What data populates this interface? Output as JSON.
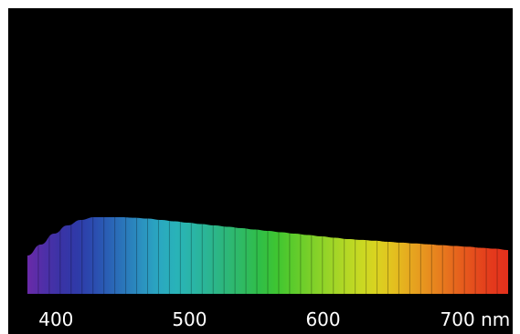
{
  "chart_data": {
    "type": "area",
    "title": "",
    "xlabel": "",
    "ylabel": "",
    "x_tick_labels": [
      "400",
      "500",
      "600",
      "700 nm"
    ],
    "x_tick_values": [
      400,
      500,
      600,
      700
    ],
    "xlim": [
      380,
      740
    ],
    "ylim": [
      0,
      1
    ],
    "grid": false,
    "x": [
      380,
      390,
      400,
      410,
      420,
      430,
      440,
      450,
      460,
      470,
      480,
      490,
      500,
      510,
      520,
      530,
      540,
      550,
      560,
      570,
      580,
      590,
      600,
      610,
      620,
      630,
      640,
      650,
      660,
      670,
      680,
      690,
      700,
      710,
      720,
      730,
      740
    ],
    "values": [
      0.14,
      0.18,
      0.22,
      0.25,
      0.27,
      0.28,
      0.28,
      0.28,
      0.278,
      0.275,
      0.27,
      0.265,
      0.26,
      0.255,
      0.25,
      0.245,
      0.24,
      0.235,
      0.23,
      0.225,
      0.22,
      0.215,
      0.21,
      0.205,
      0.2,
      0.197,
      0.194,
      0.19,
      0.187,
      0.184,
      0.181,
      0.178,
      0.175,
      0.172,
      0.168,
      0.165,
      0.16
    ],
    "colors": {
      "background": "#000000",
      "tick_text": "#ffffff",
      "spectrum": [
        "#6a2aa8",
        "#4f2fa8",
        "#3a33a6",
        "#2f3aa8",
        "#2b4cb0",
        "#2a63b6",
        "#2a7bbb",
        "#2b94c0",
        "#2aa8c0",
        "#29b3b8",
        "#2ab5a6",
        "#2bb591",
        "#2db779",
        "#2fba62",
        "#30be48",
        "#3ec532",
        "#5bcb2c",
        "#79cf2a",
        "#94d428",
        "#aed726",
        "#c6d923",
        "#d9d320",
        "#e3c21f",
        "#e6aa1f",
        "#e7931f",
        "#e77a1e",
        "#e6621d",
        "#e54c1d",
        "#e43a1c",
        "#e3301c"
      ]
    }
  }
}
